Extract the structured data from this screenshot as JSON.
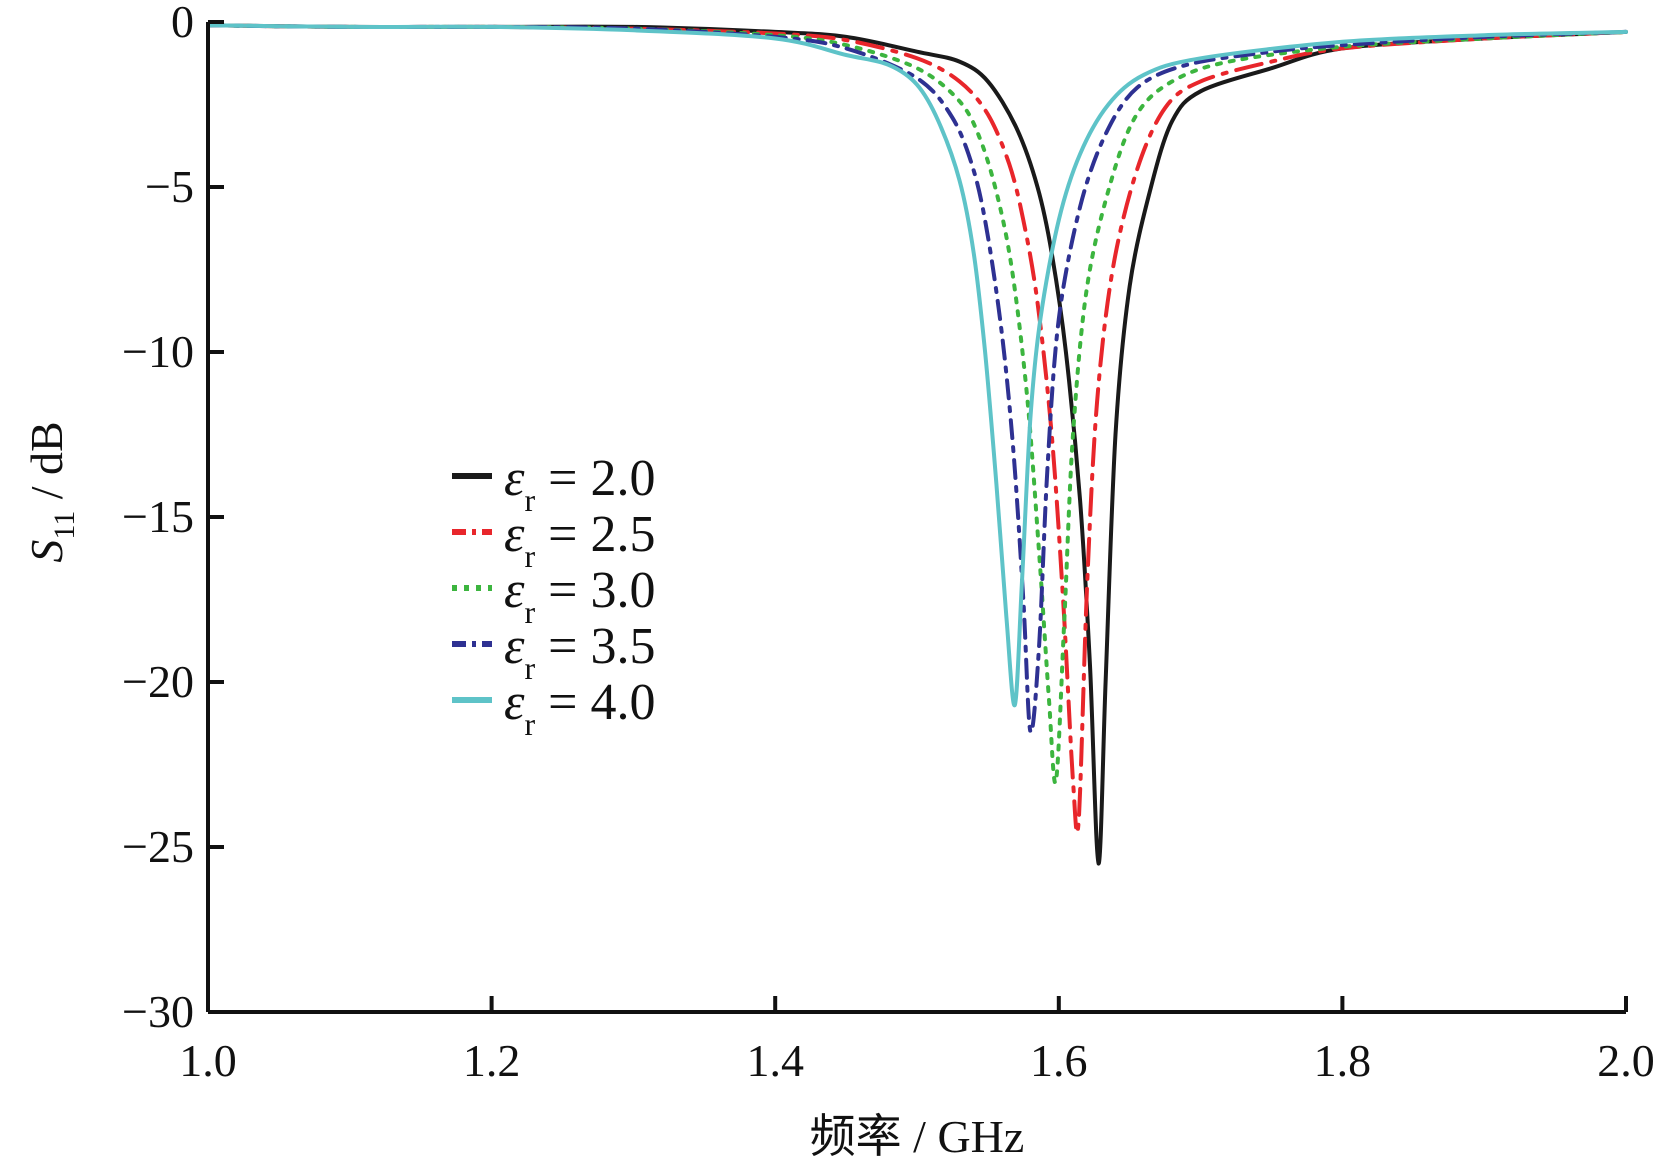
{
  "chart_data": {
    "type": "line",
    "title": "",
    "xlabel": "频率 / GHz",
    "ylabel": {
      "symbol": "S",
      "subscript": "11",
      "unit": " / dB"
    },
    "xlim": [
      1.0,
      2.0
    ],
    "ylim": [
      -30,
      0
    ],
    "xticks": [
      1.0,
      1.2,
      1.4,
      1.6,
      1.8,
      2.0
    ],
    "xtick_labels": [
      "1.0",
      "1.2",
      "1.4",
      "1.6",
      "1.8",
      "2.0"
    ],
    "yticks": [
      0,
      -5,
      -10,
      -15,
      -20,
      -25,
      -30
    ],
    "ytick_labels": [
      "0",
      "−5",
      "−10",
      "−15",
      "−20",
      "−25",
      "−30"
    ],
    "grid": false,
    "legend_position": "center-left",
    "series": [
      {
        "name": "εr = 2.0",
        "legend": {
          "symbol": "ε",
          "subscript": "r",
          "text": " = 2.0"
        },
        "color": "#1a1a1a",
        "dash": "solid",
        "points": [
          [
            1.0,
            -0.1
          ],
          [
            1.1,
            -0.15
          ],
          [
            1.2,
            -0.15
          ],
          [
            1.3,
            -0.15
          ],
          [
            1.4,
            -0.3
          ],
          [
            1.45,
            -0.45
          ],
          [
            1.5,
            -0.9
          ],
          [
            1.53,
            -1.2
          ],
          [
            1.55,
            -1.8
          ],
          [
            1.57,
            -3.2
          ],
          [
            1.585,
            -5.0
          ],
          [
            1.595,
            -7.0
          ],
          [
            1.605,
            -10.0
          ],
          [
            1.615,
            -14.5
          ],
          [
            1.622,
            -19.5
          ],
          [
            1.628,
            -25.5
          ],
          [
            1.633,
            -20.0
          ],
          [
            1.64,
            -12.5
          ],
          [
            1.65,
            -8.0
          ],
          [
            1.665,
            -5.0
          ],
          [
            1.68,
            -3.0
          ],
          [
            1.7,
            -2.1
          ],
          [
            1.75,
            -1.4
          ],
          [
            1.8,
            -0.8
          ],
          [
            1.9,
            -0.5
          ],
          [
            2.0,
            -0.3
          ]
        ]
      },
      {
        "name": "εr = 2.5",
        "legend": {
          "symbol": "ε",
          "subscript": "r",
          "text": " = 2.5"
        },
        "color": "#e8262b",
        "dash": "26,10,4,10",
        "points": [
          [
            1.0,
            -0.1
          ],
          [
            1.1,
            -0.15
          ],
          [
            1.2,
            -0.15
          ],
          [
            1.3,
            -0.2
          ],
          [
            1.4,
            -0.35
          ],
          [
            1.45,
            -0.55
          ],
          [
            1.5,
            -1.1
          ],
          [
            1.53,
            -1.8
          ],
          [
            1.55,
            -2.8
          ],
          [
            1.565,
            -4.3
          ],
          [
            1.575,
            -6.0
          ],
          [
            1.585,
            -8.5
          ],
          [
            1.595,
            -12.5
          ],
          [
            1.603,
            -17.5
          ],
          [
            1.61,
            -23.0
          ],
          [
            1.614,
            -24.2
          ],
          [
            1.62,
            -17.0
          ],
          [
            1.627,
            -11.5
          ],
          [
            1.638,
            -7.5
          ],
          [
            1.655,
            -4.5
          ],
          [
            1.675,
            -2.6
          ],
          [
            1.7,
            -1.8
          ],
          [
            1.75,
            -1.2
          ],
          [
            1.8,
            -0.8
          ],
          [
            1.9,
            -0.5
          ],
          [
            2.0,
            -0.3
          ]
        ]
      },
      {
        "name": "εr = 3.0",
        "legend": {
          "symbol": "ε",
          "subscript": "r",
          "text": " = 3.0"
        },
        "color": "#3cb53f",
        "dash": "4,9",
        "points": [
          [
            1.0,
            -0.1
          ],
          [
            1.1,
            -0.15
          ],
          [
            1.2,
            -0.15
          ],
          [
            1.3,
            -0.2
          ],
          [
            1.4,
            -0.4
          ],
          [
            1.45,
            -0.7
          ],
          [
            1.5,
            -1.4
          ],
          [
            1.53,
            -2.4
          ],
          [
            1.545,
            -3.6
          ],
          [
            1.558,
            -5.5
          ],
          [
            1.568,
            -7.8
          ],
          [
            1.578,
            -11.5
          ],
          [
            1.586,
            -16.0
          ],
          [
            1.593,
            -20.5
          ],
          [
            1.598,
            -23.0
          ],
          [
            1.604,
            -18.0
          ],
          [
            1.61,
            -12.5
          ],
          [
            1.62,
            -8.0
          ],
          [
            1.637,
            -4.8
          ],
          [
            1.655,
            -2.8
          ],
          [
            1.68,
            -1.8
          ],
          [
            1.72,
            -1.2
          ],
          [
            1.8,
            -0.75
          ],
          [
            1.9,
            -0.5
          ],
          [
            2.0,
            -0.3
          ]
        ]
      },
      {
        "name": "εr = 3.5",
        "legend": {
          "symbol": "ε",
          "subscript": "r",
          "text": " = 3.5"
        },
        "color": "#2e3192",
        "dash": "18,9,4,9",
        "points": [
          [
            1.0,
            -0.1
          ],
          [
            1.1,
            -0.15
          ],
          [
            1.2,
            -0.15
          ],
          [
            1.3,
            -0.2
          ],
          [
            1.4,
            -0.45
          ],
          [
            1.45,
            -0.8
          ],
          [
            1.5,
            -1.7
          ],
          [
            1.525,
            -2.9
          ],
          [
            1.54,
            -4.5
          ],
          [
            1.55,
            -6.5
          ],
          [
            1.56,
            -9.5
          ],
          [
            1.568,
            -13.0
          ],
          [
            1.575,
            -17.5
          ],
          [
            1.58,
            -21.5
          ],
          [
            1.586,
            -19.0
          ],
          [
            1.592,
            -13.5
          ],
          [
            1.6,
            -9.0
          ],
          [
            1.615,
            -5.6
          ],
          [
            1.633,
            -3.4
          ],
          [
            1.655,
            -2.0
          ],
          [
            1.69,
            -1.3
          ],
          [
            1.75,
            -0.9
          ],
          [
            1.8,
            -0.7
          ],
          [
            1.9,
            -0.45
          ],
          [
            2.0,
            -0.3
          ]
        ]
      },
      {
        "name": "εr = 4.0",
        "legend": {
          "symbol": "ε",
          "subscript": "r",
          "text": " = 4.0"
        },
        "color": "#5ec3c8",
        "dash": "solid",
        "points": [
          [
            1.0,
            -0.1
          ],
          [
            1.1,
            -0.15
          ],
          [
            1.2,
            -0.15
          ],
          [
            1.3,
            -0.25
          ],
          [
            1.4,
            -0.5
          ],
          [
            1.45,
            -1.0
          ],
          [
            1.48,
            -1.3
          ],
          [
            1.5,
            -1.9
          ],
          [
            1.515,
            -3.0
          ],
          [
            1.53,
            -4.8
          ],
          [
            1.54,
            -7.0
          ],
          [
            1.548,
            -10.0
          ],
          [
            1.556,
            -14.0
          ],
          [
            1.563,
            -18.0
          ],
          [
            1.569,
            -20.7
          ],
          [
            1.574,
            -17.0
          ],
          [
            1.58,
            -12.0
          ],
          [
            1.587,
            -9.0
          ],
          [
            1.6,
            -6.0
          ],
          [
            1.615,
            -4.0
          ],
          [
            1.635,
            -2.5
          ],
          [
            1.66,
            -1.6
          ],
          [
            1.7,
            -1.1
          ],
          [
            1.8,
            -0.6
          ],
          [
            1.9,
            -0.4
          ],
          [
            2.0,
            -0.3
          ]
        ]
      }
    ]
  }
}
